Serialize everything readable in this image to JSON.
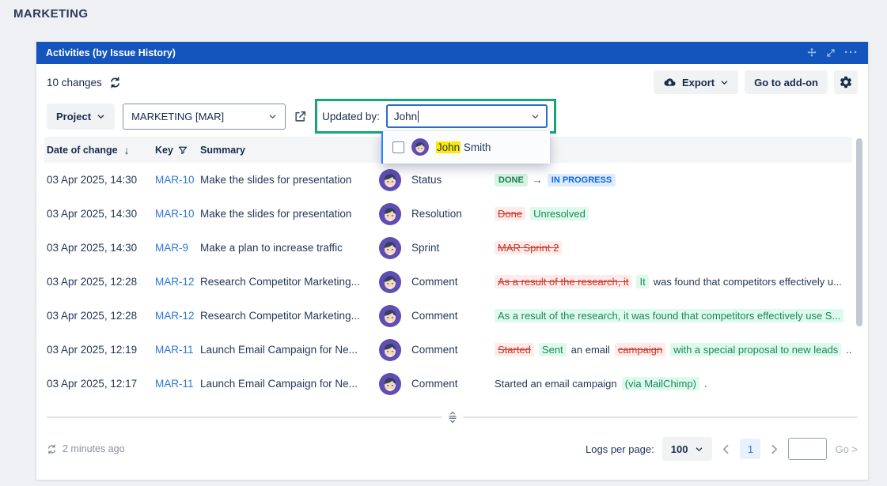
{
  "page": {
    "title": "MARKETING"
  },
  "colors": {
    "header_blue": "#1355BC",
    "annotation_green_frame": "#16A47B",
    "input_focus_blue": "#2D6CC9",
    "highlight_yellow": "#FFE900",
    "link_blue": "#2E77D6",
    "deleted_red": "#C9372C",
    "inserted_green": "#1F845A",
    "badge_new_blue": "#0C66E4",
    "avatar_purple": "#5E4DB2"
  },
  "icons": {
    "sort_desc": "↓",
    "transition_arrow": "→",
    "more": "···"
  },
  "panel": {
    "title": "Activities (by Issue History)",
    "toolbar": {
      "changes_count": "10 changes",
      "export_label": "Export",
      "goto_addon_label": "Go to add-on"
    },
    "filters": {
      "project_label": "Project",
      "project_value": "MARKETING [MAR]",
      "updated_by_label": "Updated by:",
      "updated_by_value": "John"
    },
    "user_dropdown": {
      "items": [
        {
          "name_highlight": "John",
          "name_rest": " Smith"
        }
      ]
    },
    "table": {
      "headers": {
        "date": "Date of change",
        "key": "Key",
        "summary": "Summary"
      },
      "rows": [
        {
          "date": "03 Apr 2025, 14:30",
          "key": "MAR-10",
          "summary": "Make the slides for presentation",
          "field": "Status",
          "change": [
            {
              "kind": "badge-old",
              "text": "DONE"
            },
            {
              "kind": "arrow",
              "text": "→"
            },
            {
              "kind": "badge-new",
              "text": "IN PROGRESS"
            }
          ]
        },
        {
          "date": "03 Apr 2025, 14:30",
          "key": "MAR-10",
          "summary": "Make the slides for presentation",
          "field": "Resolution",
          "change": [
            {
              "kind": "del",
              "text": "Done"
            },
            {
              "kind": "ins",
              "text": "Unresolved"
            }
          ]
        },
        {
          "date": "03 Apr 2025, 14:30",
          "key": "MAR-9",
          "summary": "Make a plan to increase traffic",
          "field": "Sprint",
          "change": [
            {
              "kind": "del",
              "text": "MAR Sprint 2"
            }
          ]
        },
        {
          "date": "03 Apr 2025, 12:28",
          "key": "MAR-12",
          "summary": "Research Competitor Marketing...",
          "field": "Comment",
          "change": [
            {
              "kind": "del",
              "text": "As a result of the research, it"
            },
            {
              "kind": "ins",
              "text": "It"
            },
            {
              "kind": "plain",
              "text": "was found that competitors effectively u..."
            }
          ]
        },
        {
          "date": "03 Apr 2025, 12:28",
          "key": "MAR-12",
          "summary": "Research Competitor Marketing...",
          "field": "Comment",
          "change": [
            {
              "kind": "ins",
              "text": "As a result of the research, it was found that competitors effectively use S..."
            }
          ]
        },
        {
          "date": "03 Apr 2025, 12:19",
          "key": "MAR-11",
          "summary": "Launch Email Campaign for Ne...",
          "field": "Comment",
          "change": [
            {
              "kind": "del",
              "text": "Started"
            },
            {
              "kind": "ins",
              "text": "Sent"
            },
            {
              "kind": "plain",
              "text": "an email"
            },
            {
              "kind": "del",
              "text": "campaign"
            },
            {
              "kind": "ins",
              "text": "with a special proposal to new leads"
            },
            {
              "kind": "plain",
              "text": "..."
            }
          ]
        },
        {
          "date": "03 Apr 2025, 12:17",
          "key": "MAR-11",
          "summary": "Launch Email Campaign for Ne...",
          "field": "Comment",
          "change": [
            {
              "kind": "plain",
              "text": "Started an email campaign"
            },
            {
              "kind": "ins",
              "text": "(via MailChimp)"
            },
            {
              "kind": "plain",
              "text": "."
            }
          ]
        }
      ]
    },
    "footer": {
      "refreshed_text": "2 minutes ago",
      "logs_per_page_label": "Logs per page:",
      "logs_per_page_value": "100",
      "current_page": "1",
      "go_label": "Go >"
    }
  }
}
